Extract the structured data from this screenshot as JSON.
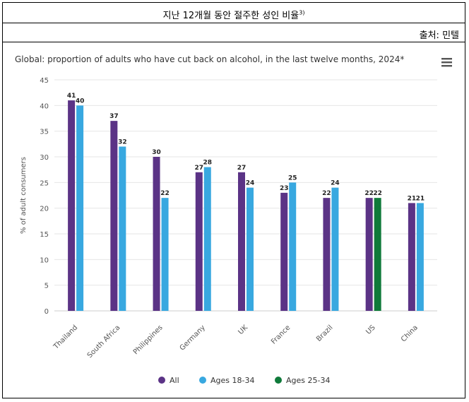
{
  "header": {
    "title": "지난 12개월 동안 절주한 성인 비율",
    "title_sup": "3)",
    "source": "출처: 민텔"
  },
  "menu_icon": "hamburger-menu-icon",
  "colors": {
    "all": "#5b3386",
    "ages_18_34": "#38a8e0",
    "ages_25_34": "#0f7a3a",
    "grid": "#e6e6e6"
  },
  "chart_data": {
    "type": "bar",
    "title": "Global: proportion of adults who have cut back on alcohol, in the last twelve months, 2024*",
    "ylabel": "% of adult consumers",
    "xlabel": "",
    "ylim": [
      0,
      45
    ],
    "yticks": [
      0,
      5,
      10,
      15,
      20,
      25,
      30,
      35,
      40,
      45
    ],
    "grid": true,
    "legend_position": "bottom",
    "categories": [
      "Thailand",
      "South Africa",
      "Philippines",
      "Germany",
      "UK",
      "France",
      "Brazil",
      "US",
      "China"
    ],
    "series": [
      {
        "name": "All",
        "color": "#5b3386",
        "values": [
          41,
          37,
          30,
          27,
          27,
          23,
          22,
          22,
          21
        ]
      },
      {
        "name": "Ages 18-34",
        "color": "#38a8e0",
        "values": [
          40,
          32,
          22,
          28,
          24,
          25,
          24,
          null,
          21
        ]
      },
      {
        "name": "Ages 25-34",
        "color": "#0f7a3a",
        "values": [
          null,
          null,
          null,
          null,
          null,
          null,
          null,
          22,
          null
        ]
      }
    ]
  }
}
